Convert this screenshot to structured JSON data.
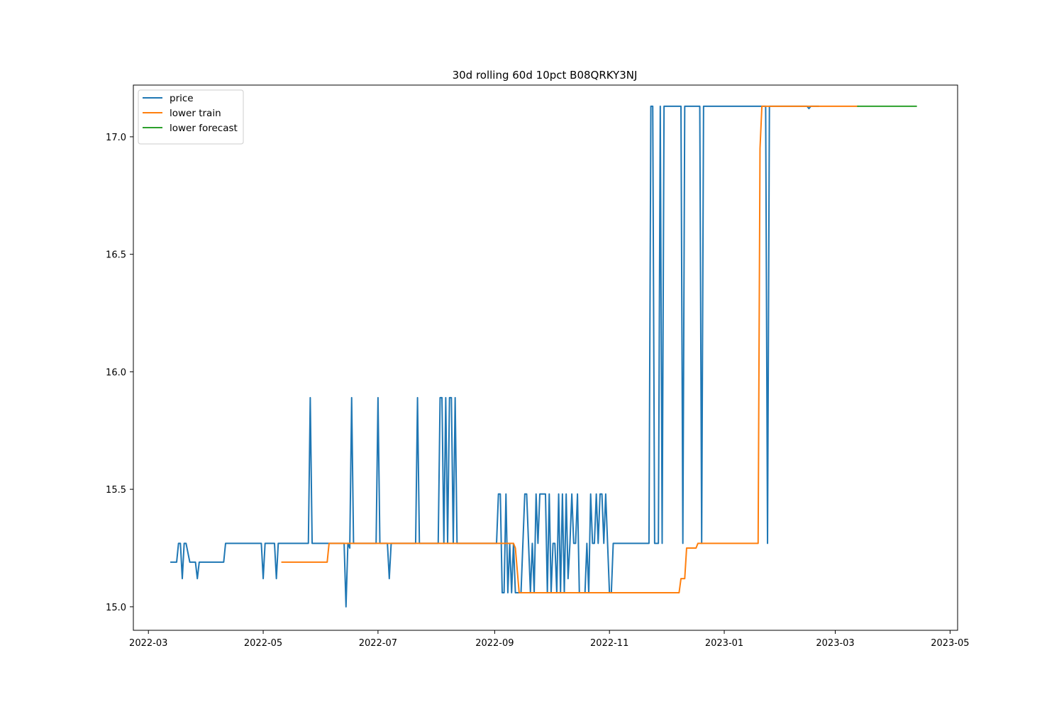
{
  "chart_data": {
    "type": "line",
    "title": "30d rolling 60d 10pct B08QRKY3NJ",
    "xlabel": "",
    "ylabel": "",
    "x_axis_type": "date",
    "xlim": [
      "2022-02-21",
      "2023-05-05"
    ],
    "ylim": [
      14.9,
      17.22
    ],
    "x_ticks": [
      "2022-03-01",
      "2022-05-01",
      "2022-07-01",
      "2022-09-01",
      "2022-11-01",
      "2023-01-01",
      "2023-03-01",
      "2023-05-01"
    ],
    "x_tick_labels": [
      "2022-03",
      "2022-05",
      "2022-07",
      "2022-09",
      "2022-11",
      "2023-01",
      "2023-03",
      "2023-05"
    ],
    "y_ticks": [
      15.0,
      15.5,
      16.0,
      16.5,
      17.0
    ],
    "y_tick_labels": [
      "15.0",
      "15.5",
      "16.0",
      "16.5",
      "17.0"
    ],
    "legend": {
      "placement": "top-left",
      "grid": false
    },
    "series": [
      {
        "name": "price",
        "color": "#1f77b4",
        "points": [
          [
            "2022-03-13",
            15.19
          ],
          [
            "2022-03-16",
            15.19
          ],
          [
            "2022-03-17",
            15.27
          ],
          [
            "2022-03-18",
            15.27
          ],
          [
            "2022-03-19",
            15.12
          ],
          [
            "2022-03-20",
            15.27
          ],
          [
            "2022-03-21",
            15.27
          ],
          [
            "2022-03-23",
            15.19
          ],
          [
            "2022-03-26",
            15.19
          ],
          [
            "2022-03-27",
            15.12
          ],
          [
            "2022-03-28",
            15.19
          ],
          [
            "2022-04-10",
            15.19
          ],
          [
            "2022-04-11",
            15.27
          ],
          [
            "2022-04-30",
            15.27
          ],
          [
            "2022-05-01",
            15.12
          ],
          [
            "2022-05-02",
            15.27
          ],
          [
            "2022-05-07",
            15.27
          ],
          [
            "2022-05-08",
            15.12
          ],
          [
            "2022-05-09",
            15.27
          ],
          [
            "2022-05-25",
            15.27
          ],
          [
            "2022-05-26",
            15.89
          ],
          [
            "2022-05-27",
            15.27
          ],
          [
            "2022-06-13",
            15.27
          ],
          [
            "2022-06-14",
            15.0
          ],
          [
            "2022-06-15",
            15.27
          ],
          [
            "2022-06-16",
            15.25
          ],
          [
            "2022-06-17",
            15.89
          ],
          [
            "2022-06-18",
            15.27
          ],
          [
            "2022-06-30",
            15.27
          ],
          [
            "2022-07-01",
            15.89
          ],
          [
            "2022-07-02",
            15.27
          ],
          [
            "2022-07-06",
            15.27
          ],
          [
            "2022-07-07",
            15.12
          ],
          [
            "2022-07-08",
            15.27
          ],
          [
            "2022-07-21",
            15.27
          ],
          [
            "2022-07-22",
            15.89
          ],
          [
            "2022-07-23",
            15.27
          ],
          [
            "2022-08-02",
            15.27
          ],
          [
            "2022-08-03",
            15.89
          ],
          [
            "2022-08-04",
            15.89
          ],
          [
            "2022-08-05",
            15.27
          ],
          [
            "2022-08-06",
            15.89
          ],
          [
            "2022-08-07",
            15.27
          ],
          [
            "2022-08-08",
            15.89
          ],
          [
            "2022-08-09",
            15.89
          ],
          [
            "2022-08-10",
            15.27
          ],
          [
            "2022-08-11",
            15.89
          ],
          [
            "2022-08-12",
            15.27
          ],
          [
            "2022-09-02",
            15.27
          ],
          [
            "2022-09-03",
            15.48
          ],
          [
            "2022-09-04",
            15.48
          ],
          [
            "2022-09-05",
            15.06
          ],
          [
            "2022-09-06",
            15.06
          ],
          [
            "2022-09-07",
            15.48
          ],
          [
            "2022-09-08",
            15.06
          ],
          [
            "2022-09-09",
            15.27
          ],
          [
            "2022-09-10",
            15.06
          ],
          [
            "2022-09-11",
            15.27
          ],
          [
            "2022-09-12",
            15.06
          ],
          [
            "2022-09-15",
            15.06
          ],
          [
            "2022-09-17",
            15.48
          ],
          [
            "2022-09-18",
            15.48
          ],
          [
            "2022-09-20",
            15.06
          ],
          [
            "2022-09-21",
            15.27
          ],
          [
            "2022-09-22",
            15.06
          ],
          [
            "2022-09-23",
            15.48
          ],
          [
            "2022-09-24",
            15.27
          ],
          [
            "2022-09-25",
            15.48
          ],
          [
            "2022-09-28",
            15.48
          ],
          [
            "2022-09-29",
            15.06
          ],
          [
            "2022-09-30",
            15.48
          ],
          [
            "2022-10-01",
            15.06
          ],
          [
            "2022-10-02",
            15.27
          ],
          [
            "2022-10-03",
            15.27
          ],
          [
            "2022-10-04",
            15.06
          ],
          [
            "2022-10-05",
            15.48
          ],
          [
            "2022-10-06",
            15.06
          ],
          [
            "2022-10-07",
            15.48
          ],
          [
            "2022-10-08",
            15.06
          ],
          [
            "2022-10-09",
            15.48
          ],
          [
            "2022-10-10",
            15.12
          ],
          [
            "2022-10-11",
            15.27
          ],
          [
            "2022-10-12",
            15.48
          ],
          [
            "2022-10-13",
            15.27
          ],
          [
            "2022-10-14",
            15.27
          ],
          [
            "2022-10-15",
            15.48
          ],
          [
            "2022-10-16",
            15.06
          ],
          [
            "2022-10-19",
            15.06
          ],
          [
            "2022-10-20",
            15.27
          ],
          [
            "2022-10-21",
            15.06
          ],
          [
            "2022-10-22",
            15.48
          ],
          [
            "2022-10-23",
            15.27
          ],
          [
            "2022-10-24",
            15.27
          ],
          [
            "2022-10-25",
            15.48
          ],
          [
            "2022-10-26",
            15.27
          ],
          [
            "2022-10-27",
            15.48
          ],
          [
            "2022-10-28",
            15.48
          ],
          [
            "2022-10-29",
            15.27
          ],
          [
            "2022-10-30",
            15.48
          ],
          [
            "2022-10-31",
            15.27
          ],
          [
            "2022-11-01",
            15.06
          ],
          [
            "2022-11-02",
            15.06
          ],
          [
            "2022-11-03",
            15.27
          ],
          [
            "2022-11-22",
            15.27
          ],
          [
            "2022-11-23",
            17.13
          ],
          [
            "2022-11-24",
            17.13
          ],
          [
            "2022-11-25",
            15.27
          ],
          [
            "2022-11-27",
            15.27
          ],
          [
            "2022-11-28",
            17.13
          ],
          [
            "2022-11-29",
            15.27
          ],
          [
            "2022-11-30",
            17.13
          ],
          [
            "2022-12-09",
            17.13
          ],
          [
            "2022-12-10",
            15.27
          ],
          [
            "2022-12-11",
            17.13
          ],
          [
            "2022-12-19",
            17.13
          ],
          [
            "2022-12-20",
            15.27
          ],
          [
            "2022-12-21",
            17.13
          ],
          [
            "2023-01-23",
            17.13
          ],
          [
            "2023-01-24",
            15.27
          ],
          [
            "2023-01-25",
            17.13
          ],
          [
            "2023-02-14",
            17.13
          ],
          [
            "2023-02-15",
            17.12
          ],
          [
            "2023-02-16",
            17.13
          ],
          [
            "2023-02-20",
            17.13
          ]
        ]
      },
      {
        "name": "lower train",
        "color": "#ff7f0e",
        "points": [
          [
            "2022-05-11",
            15.19
          ],
          [
            "2022-06-04",
            15.19
          ],
          [
            "2022-06-05",
            15.27
          ],
          [
            "2022-09-11",
            15.27
          ],
          [
            "2022-09-12",
            15.25
          ],
          [
            "2022-09-14",
            15.06
          ],
          [
            "2022-12-08",
            15.06
          ],
          [
            "2022-12-09",
            15.12
          ],
          [
            "2022-12-11",
            15.12
          ],
          [
            "2022-12-12",
            15.25
          ],
          [
            "2022-12-17",
            15.25
          ],
          [
            "2022-12-18",
            15.27
          ],
          [
            "2023-01-19",
            15.27
          ],
          [
            "2023-01-20",
            16.95
          ],
          [
            "2023-01-21",
            17.13
          ],
          [
            "2023-03-13",
            17.13
          ]
        ]
      },
      {
        "name": "lower forecast",
        "color": "#2ca02c",
        "points": [
          [
            "2023-03-13",
            17.13
          ],
          [
            "2023-04-13",
            17.13
          ]
        ]
      }
    ]
  }
}
